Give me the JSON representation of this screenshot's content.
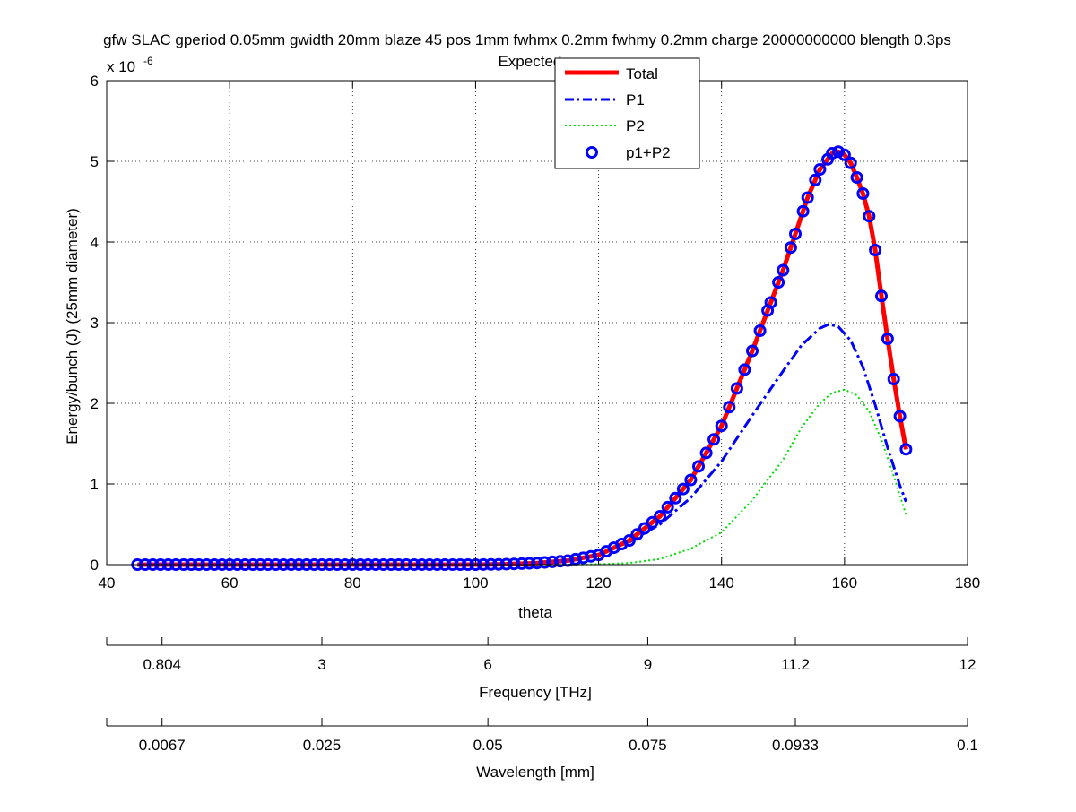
{
  "chart_data": {
    "type": "line",
    "title": "gfw SLAC gperiod 0.05mm gwidth 20mm blaze 45 pos 1mm fwhmx 0.2mm fwhmy 0.2mm charge 20000000000 blength 0.3ps",
    "subtitle": "Expected e",
    "xlabel": "theta",
    "ylabel": "Energy/bunch (J) (25mm diameter)",
    "y_exponent_label": "x 10",
    "y_exponent_power": "-6",
    "xlim": [
      40,
      180
    ],
    "ylim": [
      0,
      6
    ],
    "grid": true,
    "legend_position": "top-center",
    "xticks": [
      "40",
      "60",
      "80",
      "100",
      "120",
      "140",
      "160",
      "180"
    ],
    "yticks": [
      "0",
      "1",
      "2",
      "3",
      "4",
      "5",
      "6"
    ],
    "secondary_axes": [
      {
        "label": "Frequency [THz]",
        "ticks": [
          "0.804",
          "3",
          "6",
          "9",
          "11.2",
          "12"
        ],
        "tick_theta": [
          49,
          75,
          102,
          128,
          152,
          180
        ]
      },
      {
        "label": "Wavelength [mm]",
        "ticks": [
          "0.0067",
          "0.025",
          "0.05",
          "0.075",
          "0.0933",
          "0.1"
        ],
        "tick_theta": [
          49,
          75,
          102,
          128,
          152,
          180
        ]
      }
    ],
    "series": [
      {
        "name": "Total",
        "style": "solid",
        "color": "#ff0000",
        "x": [
          45,
          100,
          105,
          110,
          115,
          120,
          125,
          130,
          135,
          140,
          145,
          148,
          150,
          152,
          154,
          156,
          158,
          159,
          160,
          161,
          162,
          163,
          164,
          165,
          166,
          167,
          168,
          169,
          170
        ],
        "y": [
          0,
          0,
          0.005,
          0.02,
          0.05,
          0.12,
          0.3,
          0.6,
          1.05,
          1.72,
          2.65,
          3.25,
          3.65,
          4.1,
          4.55,
          4.9,
          5.1,
          5.12,
          5.08,
          4.98,
          4.8,
          4.6,
          4.32,
          3.9,
          3.33,
          2.8,
          2.3,
          1.84,
          1.43
        ]
      },
      {
        "name": "P1",
        "style": "dashdot",
        "color": "#0000ff",
        "x": [
          45,
          100,
          105,
          110,
          115,
          120,
          125,
          130,
          135,
          140,
          145,
          150,
          153,
          156,
          157.5,
          159,
          161,
          163,
          165,
          167,
          169,
          170
        ],
        "y": [
          0,
          0,
          0.005,
          0.02,
          0.05,
          0.12,
          0.28,
          0.5,
          0.83,
          1.28,
          1.85,
          2.4,
          2.72,
          2.93,
          2.98,
          2.95,
          2.78,
          2.45,
          1.98,
          1.45,
          0.98,
          0.78
        ]
      },
      {
        "name": "P2",
        "style": "dotted",
        "color": "#00dd00",
        "x": [
          45,
          110,
          115,
          120,
          125,
          130,
          135,
          140,
          145,
          150,
          153,
          156,
          158,
          160,
          162,
          164,
          166,
          168,
          170
        ],
        "y": [
          0,
          0,
          0,
          0.005,
          0.02,
          0.07,
          0.2,
          0.4,
          0.8,
          1.3,
          1.7,
          2.0,
          2.13,
          2.17,
          2.1,
          1.9,
          1.55,
          1.1,
          0.62
        ]
      },
      {
        "name": "p1+P2",
        "style": "markers",
        "color": "#0000ff",
        "x": [
          45,
          100,
          105,
          110,
          115,
          120,
          125,
          130,
          135,
          140,
          145,
          148,
          150,
          152,
          154,
          156,
          158,
          159,
          160,
          161,
          162,
          163,
          164,
          165,
          166,
          167,
          168,
          169,
          170
        ],
        "y": [
          0,
          0,
          0.005,
          0.02,
          0.05,
          0.12,
          0.3,
          0.6,
          1.05,
          1.72,
          2.65,
          3.25,
          3.65,
          4.1,
          4.55,
          4.9,
          5.1,
          5.12,
          5.08,
          4.98,
          4.8,
          4.6,
          4.32,
          3.9,
          3.33,
          2.8,
          2.3,
          1.84,
          1.43
        ]
      }
    ]
  }
}
